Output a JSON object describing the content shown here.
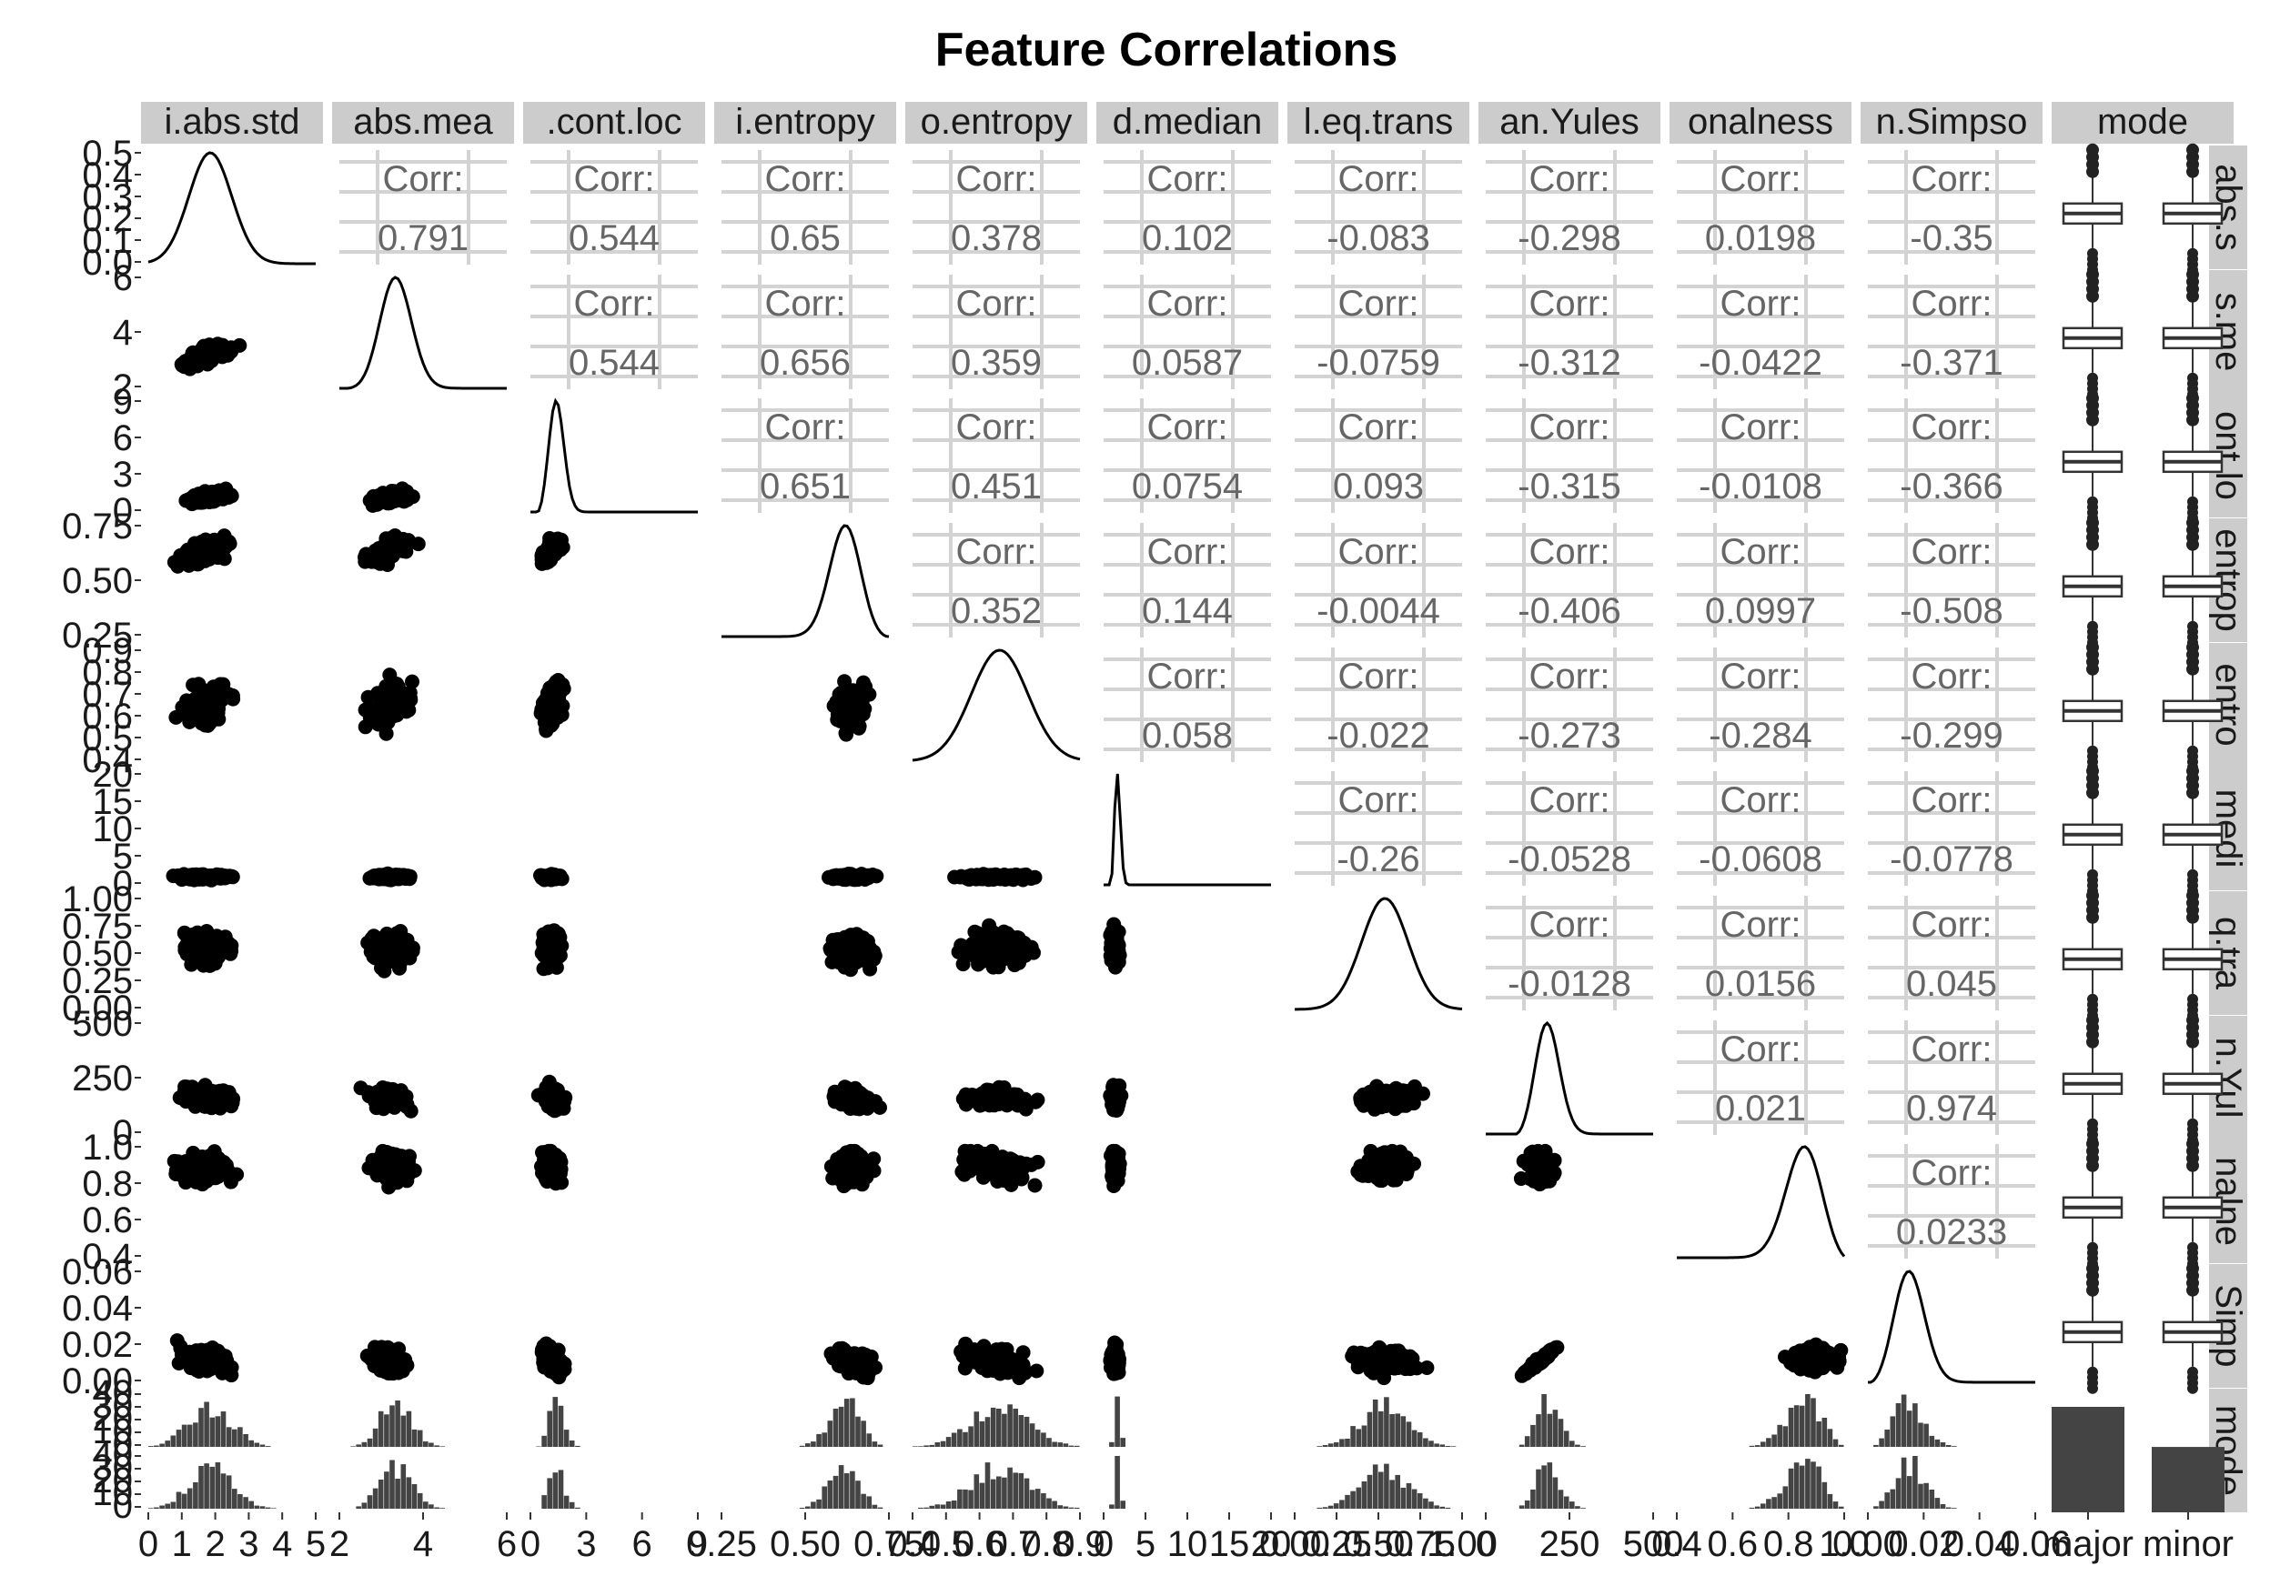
{
  "chart_data": {
    "type": "scatter",
    "subtype": "pairs-plot-matrix",
    "title": "Feature Correlations",
    "variables": [
      "i.abs.std",
      "abs.mea",
      ".cont.loc",
      "i.entropy",
      "o.entropy",
      "d.median",
      "l.eq.trans",
      "an.Yules",
      "onalness",
      "n.Simpso",
      "mode"
    ],
    "row_strips": [
      "abs.s",
      "s.me",
      "ont.lo",
      "entrop",
      "entro",
      "medi",
      "q.tra",
      "n.Yul",
      "nalne",
      "Simp",
      "mode"
    ],
    "y_ticks": [
      [
        "0.5",
        "0.4",
        "0.3",
        "0.2",
        "0.1",
        "0.0"
      ],
      [
        "6",
        "4",
        "2"
      ],
      [
        "9",
        "6",
        "3",
        "0"
      ],
      [
        "0.75",
        "0.50",
        "0.25"
      ],
      [
        "0.9",
        "0.8",
        "0.7",
        "0.6",
        "0.5",
        "0.4"
      ],
      [
        "20",
        "15",
        "10",
        "5",
        "0"
      ],
      [
        "1.00",
        "0.75",
        "0.50",
        "0.25",
        "0.00"
      ],
      [
        "500",
        "250",
        "0"
      ],
      [
        "1.0",
        "0.8",
        "0.6",
        "0.4"
      ],
      [
        "0.06",
        "0.04",
        "0.02",
        "0.00"
      ],
      [
        "40",
        "30",
        "20",
        "10",
        "0",
        "40",
        "30",
        "20",
        "10",
        "0"
      ]
    ],
    "x_ticks": [
      [
        "0",
        "1",
        "2",
        "3",
        "4",
        "5"
      ],
      [
        "2",
        "4",
        "6"
      ],
      [
        "0",
        "3",
        "6",
        "9"
      ],
      [
        "0.25",
        "0.50",
        "0.75"
      ],
      [
        "0.4",
        "0.5",
        "0.6",
        "0.7",
        "0.8",
        "0.9"
      ],
      [
        "0",
        "5",
        "10",
        "15",
        "20"
      ],
      [
        "0.00",
        "0.25",
        "0.50",
        "0.75",
        "1.00"
      ],
      [
        "0",
        "250",
        "500"
      ],
      [
        "0.4",
        "0.6",
        "0.8",
        "1.0"
      ],
      [
        "0.00",
        "0.02",
        "0.04",
        "0.06"
      ],
      [
        "major",
        "minor"
      ]
    ],
    "corr_label": "Corr:",
    "correlations": [
      {
        "row": 1,
        "col": 2,
        "value": "0.791"
      },
      {
        "row": 1,
        "col": 3,
        "value": "0.544"
      },
      {
        "row": 1,
        "col": 4,
        "value": "0.65"
      },
      {
        "row": 1,
        "col": 5,
        "value": "0.378"
      },
      {
        "row": 1,
        "col": 6,
        "value": "0.102"
      },
      {
        "row": 1,
        "col": 7,
        "value": "-0.083"
      },
      {
        "row": 1,
        "col": 8,
        "value": "-0.298"
      },
      {
        "row": 1,
        "col": 9,
        "value": "0.0198"
      },
      {
        "row": 1,
        "col": 10,
        "value": "-0.35"
      },
      {
        "row": 2,
        "col": 3,
        "value": "0.544"
      },
      {
        "row": 2,
        "col": 4,
        "value": "0.656"
      },
      {
        "row": 2,
        "col": 5,
        "value": "0.359"
      },
      {
        "row": 2,
        "col": 6,
        "value": "0.0587"
      },
      {
        "row": 2,
        "col": 7,
        "value": "-0.0759"
      },
      {
        "row": 2,
        "col": 8,
        "value": "-0.312"
      },
      {
        "row": 2,
        "col": 9,
        "value": "-0.0422"
      },
      {
        "row": 2,
        "col": 10,
        "value": "-0.371"
      },
      {
        "row": 3,
        "col": 4,
        "value": "0.651"
      },
      {
        "row": 3,
        "col": 5,
        "value": "0.451"
      },
      {
        "row": 3,
        "col": 6,
        "value": "0.0754"
      },
      {
        "row": 3,
        "col": 7,
        "value": "0.093"
      },
      {
        "row": 3,
        "col": 8,
        "value": "-0.315"
      },
      {
        "row": 3,
        "col": 9,
        "value": "-0.0108"
      },
      {
        "row": 3,
        "col": 10,
        "value": "-0.366"
      },
      {
        "row": 4,
        "col": 5,
        "value": "0.352"
      },
      {
        "row": 4,
        "col": 6,
        "value": "0.144"
      },
      {
        "row": 4,
        "col": 7,
        "value": "-0.0044"
      },
      {
        "row": 4,
        "col": 8,
        "value": "-0.406"
      },
      {
        "row": 4,
        "col": 9,
        "value": "0.0997"
      },
      {
        "row": 4,
        "col": 10,
        "value": "-0.508"
      },
      {
        "row": 5,
        "col": 6,
        "value": "0.058"
      },
      {
        "row": 5,
        "col": 7,
        "value": "-0.022"
      },
      {
        "row": 5,
        "col": 8,
        "value": "-0.273"
      },
      {
        "row": 5,
        "col": 9,
        "value": "-0.284"
      },
      {
        "row": 5,
        "col": 10,
        "value": "-0.299"
      },
      {
        "row": 6,
        "col": 7,
        "value": "-0.26"
      },
      {
        "row": 6,
        "col": 8,
        "value": "-0.0528"
      },
      {
        "row": 6,
        "col": 9,
        "value": "-0.0608"
      },
      {
        "row": 6,
        "col": 10,
        "value": "-0.0778"
      },
      {
        "row": 7,
        "col": 8,
        "value": "-0.0128"
      },
      {
        "row": 7,
        "col": 9,
        "value": "0.0156"
      },
      {
        "row": 7,
        "col": 10,
        "value": "0.045"
      },
      {
        "row": 8,
        "col": 9,
        "value": "0.021"
      },
      {
        "row": 8,
        "col": 10,
        "value": "0.974"
      },
      {
        "row": 9,
        "col": 10,
        "value": "0.0233"
      }
    ],
    "mode_counts": {
      "categories": [
        "major",
        "minor"
      ],
      "values": [
        1,
        0.62
      ]
    },
    "grid": true,
    "legend": "none"
  }
}
